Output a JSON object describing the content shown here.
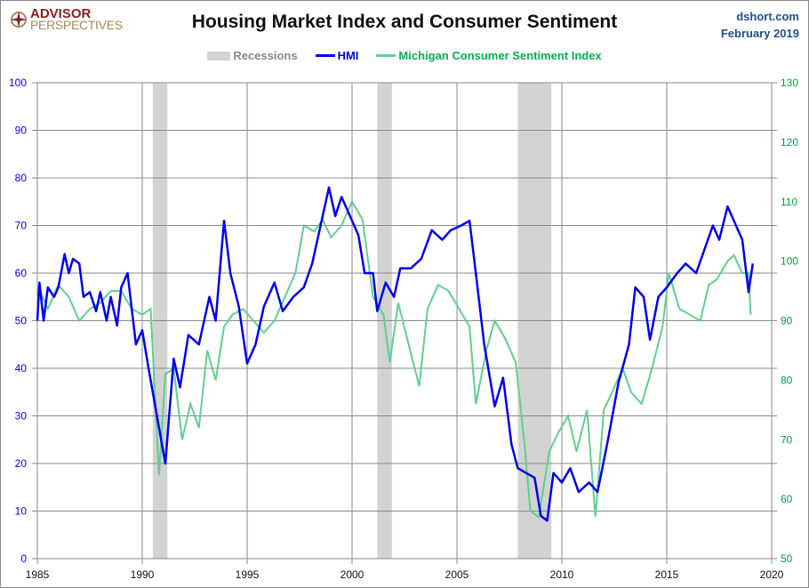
{
  "header": {
    "logo_line1": "ADVISOR",
    "logo_line2": "PERSPECTIVES",
    "source": "dshort.com",
    "date": "February 2019"
  },
  "colors": {
    "hmi": "#0000ee",
    "sentiment": "#5fcf8f",
    "recession": "#d3d3d3",
    "left_axis": "#0000ee",
    "right_axis": "#00a040"
  },
  "chart_data": {
    "type": "line",
    "title": "Housing Market Index and Consumer Sentiment",
    "legend": [
      "Recessions",
      "HMI",
      "Michigan Consumer Sentiment Index"
    ],
    "legend_position": "top",
    "grid": true,
    "xlim": [
      1985,
      2020
    ],
    "x_ticks": [
      "1985",
      "1990",
      "1995",
      "2000",
      "2005",
      "2010",
      "2015",
      "2020"
    ],
    "y_left": {
      "lim": [
        0,
        100
      ],
      "ticks": [
        "0",
        "10",
        "20",
        "30",
        "40",
        "50",
        "60",
        "70",
        "80",
        "90",
        "100"
      ]
    },
    "y_right": {
      "lim": [
        50,
        130
      ],
      "ticks": [
        "50",
        "60",
        "70",
        "80",
        "90",
        "100",
        "110",
        "120",
        "130"
      ]
    },
    "recessions": [
      [
        1990.5,
        1991.2
      ],
      [
        2001.2,
        2001.9
      ],
      [
        2007.9,
        2009.5
      ]
    ],
    "series": [
      {
        "name": "HMI",
        "axis": "left",
        "x": [
          1985,
          1985.1,
          1985.3,
          1985.5,
          1985.8,
          1986,
          1986.3,
          1986.5,
          1986.7,
          1987,
          1987.2,
          1987.5,
          1987.8,
          1988,
          1988.3,
          1988.5,
          1988.8,
          1989,
          1989.3,
          1989.7,
          1990,
          1990.3,
          1990.7,
          1991.1,
          1991.5,
          1991.8,
          1992.2,
          1992.7,
          1993.2,
          1993.5,
          1993.9,
          1994.2,
          1994.6,
          1995.0,
          1995.4,
          1995.8,
          1996.3,
          1996.7,
          1997.2,
          1997.7,
          1998.1,
          1998.6,
          1998.9,
          1999.2,
          1999.5,
          1999.9,
          2000.3,
          2000.6,
          2001,
          2001.2,
          2001.6,
          2002,
          2002.3,
          2002.8,
          2003.3,
          2003.8,
          2004.3,
          2004.7,
          2005.2,
          2005.6,
          2005.9,
          2006.3,
          2006.8,
          2007.2,
          2007.6,
          2007.9,
          2008.3,
          2008.7,
          2009.0,
          2009.3,
          2009.6,
          2010.0,
          2010.4,
          2010.8,
          2011.3,
          2011.7,
          2012.2,
          2012.7,
          2013.2,
          2013.5,
          2013.9,
          2014.2,
          2014.6,
          2015.0,
          2015.5,
          2015.9,
          2016.4,
          2016.8,
          2017.2,
          2017.5,
          2017.9,
          2018.2,
          2018.6,
          2018.9,
          2019.1
        ],
        "values": [
          50,
          58,
          50,
          57,
          55,
          57,
          64,
          60,
          63,
          62,
          55,
          56,
          52,
          56,
          50,
          55,
          49,
          57,
          60,
          45,
          48,
          40,
          30,
          20,
          42,
          36,
          47,
          45,
          55,
          50,
          71,
          60,
          53,
          41,
          45,
          53,
          58,
          52,
          55,
          57,
          62,
          72,
          78,
          72,
          76,
          72,
          68,
          60,
          60,
          52,
          58,
          55,
          61,
          61,
          63,
          69,
          67,
          69,
          70,
          71,
          60,
          45,
          32,
          38,
          24,
          19,
          18,
          17,
          9,
          8,
          18,
          16,
          19,
          14,
          16,
          14,
          25,
          37,
          45,
          57,
          55,
          46,
          55,
          57,
          60,
          62,
          60,
          65,
          70,
          67,
          74,
          71,
          67,
          56,
          62
        ]
      },
      {
        "name": "Michigan Consumer Sentiment Index",
        "axis": "right",
        "x": [
          1985,
          1985.5,
          1986,
          1986.5,
          1987,
          1987.5,
          1988,
          1988.5,
          1989,
          1989.5,
          1990,
          1990.4,
          1990.8,
          1991.1,
          1991.5,
          1991.9,
          1992.3,
          1992.7,
          1993.1,
          1993.5,
          1993.9,
          1994.3,
          1994.8,
          1995.3,
          1995.8,
          1996.3,
          1996.8,
          1997.3,
          1997.7,
          1998.2,
          1998.6,
          1999,
          1999.5,
          2000,
          2000.5,
          2001.0,
          2001.5,
          2001.8,
          2002.2,
          2002.7,
          2003.2,
          2003.6,
          2004.1,
          2004.6,
          2005.1,
          2005.6,
          2005.9,
          2006.4,
          2006.8,
          2007.3,
          2007.8,
          2008.2,
          2008.5,
          2008.9,
          2009.4,
          2009.8,
          2010.3,
          2010.7,
          2011.2,
          2011.6,
          2012.0,
          2012.4,
          2012.9,
          2013.3,
          2013.8,
          2014.3,
          2014.8,
          2015.1,
          2015.6,
          2016.1,
          2016.6,
          2017.0,
          2017.4,
          2017.9,
          2018.2,
          2018.6,
          2018.9,
          2019.0
        ],
        "values": [
          96,
          92,
          96,
          94,
          90,
          92,
          93,
          95,
          95,
          92,
          91,
          92,
          64,
          81,
          82,
          70,
          76,
          72,
          85,
          80,
          89,
          91,
          92,
          90,
          88,
          90,
          94,
          98,
          106,
          105,
          107,
          104,
          106,
          110,
          107,
          94,
          91,
          83,
          93,
          86,
          79,
          92,
          96,
          95,
          92,
          89,
          76,
          85,
          90,
          87,
          83,
          70,
          58,
          57,
          68,
          71,
          74,
          68,
          75,
          57,
          75,
          78,
          82,
          78,
          76,
          82,
          89,
          98,
          92,
          91,
          90,
          96,
          97,
          100,
          101,
          98,
          98,
          91
        ]
      }
    ]
  }
}
